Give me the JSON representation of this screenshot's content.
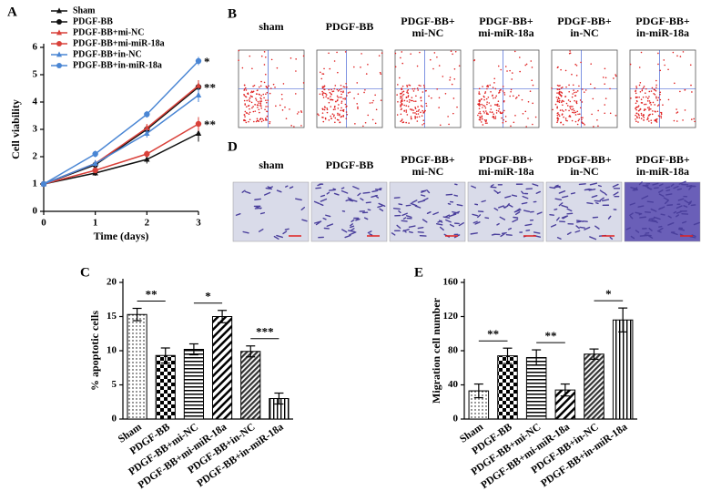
{
  "chart_data": [
    {
      "type": "line",
      "panel": "A",
      "xlabel": "Time (days)",
      "ylabel": "Cell viability",
      "x": [
        0,
        1,
        2,
        3
      ],
      "xlim": [
        0,
        3
      ],
      "xticks": [
        0,
        1,
        2,
        3
      ],
      "ylim": [
        0,
        6
      ],
      "yticks": [
        0,
        1,
        2,
        3,
        4,
        5,
        6
      ],
      "legend": "upper left",
      "series": [
        {
          "name": "Sham",
          "color": "#111111",
          "marker": "triangle",
          "values": [
            1,
            1.4,
            1.9,
            2.85
          ],
          "errors": [
            0.03,
            0.1,
            0.15,
            0.3
          ]
        },
        {
          "name": "PDGF-BB",
          "color": "#111111",
          "marker": "circle",
          "values": [
            1,
            1.7,
            3.0,
            4.55
          ],
          "errors": [
            0.03,
            0.12,
            0.15,
            0.25
          ]
        },
        {
          "name": "PDGF-BB+mi-NC",
          "color": "#d9413a",
          "marker": "triangle",
          "values": [
            1,
            1.75,
            3.05,
            4.6
          ],
          "errors": [
            0.03,
            0.12,
            0.15,
            0.2
          ]
        },
        {
          "name": "PDGF-BB+mi-miR-18a",
          "color": "#d9413a",
          "marker": "circle",
          "values": [
            1,
            1.5,
            2.1,
            3.2
          ],
          "errors": [
            0.03,
            0.1,
            0.12,
            0.25
          ]
        },
        {
          "name": "PDGF-BB+in-NC",
          "color": "#4a86d4",
          "marker": "triangle",
          "values": [
            1,
            1.75,
            2.85,
            4.25
          ],
          "errors": [
            0.03,
            0.12,
            0.15,
            0.25
          ]
        },
        {
          "name": "PDGF-BB+in-miR-18a",
          "color": "#4a86d4",
          "marker": "circle",
          "values": [
            1,
            2.1,
            3.55,
            5.5
          ],
          "errors": [
            0.03,
            0.12,
            0.12,
            0.15
          ]
        }
      ],
      "annotations": [
        {
          "label": "*",
          "y": 5.5
        },
        {
          "label": "**",
          "y": 4.55
        },
        {
          "label": "**",
          "y": 3.2
        }
      ]
    },
    {
      "type": "bar",
      "panel": "C",
      "ylabel": "% apoptotic cells",
      "categories": [
        "Sham",
        "PDGF-BB",
        "PDGF-BB+mi-NC",
        "PDGF-BB+mi-miR-18a",
        "PDGF-BB+in-NC",
        "PDGF-BB+in-miR-18a"
      ],
      "values": [
        15.3,
        9.3,
        10.2,
        15.0,
        9.9,
        3.0
      ],
      "errors": [
        0.9,
        1.1,
        0.8,
        0.9,
        0.8,
        0.8
      ],
      "patterns": [
        "dots",
        "checker",
        "hlines",
        "dlines",
        "dlines-dense",
        "vlines"
      ],
      "ylim": [
        0,
        20
      ],
      "yticks": [
        0,
        5,
        10,
        15,
        20
      ],
      "significance": [
        {
          "label": "**",
          "from": 0,
          "to": 1
        },
        {
          "label": "*",
          "from": 2,
          "to": 3
        },
        {
          "label": "***",
          "from": 4,
          "to": 5
        }
      ]
    },
    {
      "type": "bar",
      "panel": "E",
      "ylabel": "Migration cell number",
      "categories": [
        "Sham",
        "PDGF-BB",
        "PDGF-BB+mi-NC",
        "PDGF-BB+mi-miR-18a",
        "PDGF-BB+in-NC",
        "PDGF-BB+in-miR-18a"
      ],
      "values": [
        33,
        74,
        72,
        34,
        76,
        116
      ],
      "errors": [
        8,
        9,
        9,
        7,
        6,
        14
      ],
      "patterns": [
        "dots",
        "checker",
        "hlines",
        "dlines",
        "dlines-dense",
        "vlines"
      ],
      "ylim": [
        0,
        160
      ],
      "yticks": [
        0,
        40,
        80,
        120,
        160
      ],
      "significance": [
        {
          "label": "**",
          "from": 0,
          "to": 1
        },
        {
          "label": "**",
          "from": 2,
          "to": 3
        },
        {
          "label": "*",
          "from": 4,
          "to": 5
        }
      ]
    }
  ],
  "flow_panel": {
    "label": "B",
    "columns": [
      [
        "sham"
      ],
      [
        "PDGF-BB"
      ],
      [
        "PDGF-BB+",
        "mi-NC"
      ],
      [
        "PDGF-BB+",
        "mi-miR-18a"
      ],
      [
        "PDGF-BB+",
        "in-NC"
      ],
      [
        "PDGF-BB+",
        "in-miR-18a"
      ]
    ]
  },
  "micrograph_panel": {
    "label": "D",
    "columns": [
      [
        "sham"
      ],
      [
        "PDGF-BB"
      ],
      [
        "PDGF-BB+",
        "mi-NC"
      ],
      [
        "PDGF-BB+",
        "mi-miR-18a"
      ],
      [
        "PDGF-BB+",
        "in-NC"
      ],
      [
        "PDGF-BB+",
        "in-miR-18a"
      ]
    ]
  }
}
